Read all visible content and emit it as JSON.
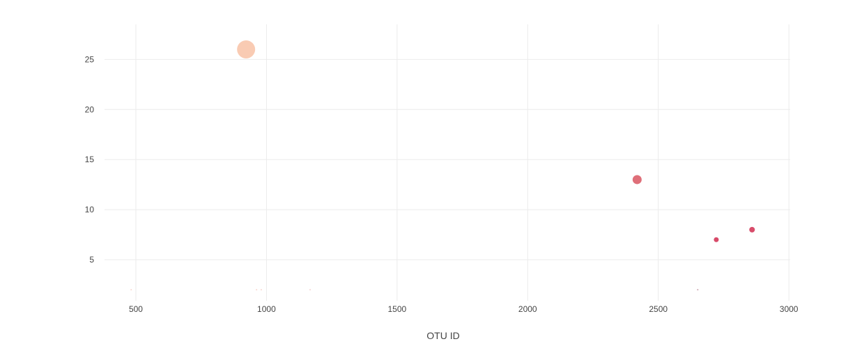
{
  "chart_data": {
    "type": "scatter",
    "title": "",
    "xlabel": "OTU ID",
    "ylabel": "",
    "xlim": [
      380,
      3005
    ],
    "ylim": [
      0.9,
      28.5
    ],
    "x_ticks": [
      500,
      1000,
      1500,
      2000,
      2500,
      3000
    ],
    "y_ticks": [
      5,
      10,
      15,
      20,
      25
    ],
    "grid": true,
    "series": [
      {
        "points": [
          {
            "x": 922,
            "y": 26,
            "size": 26,
            "color": "#f9cbb3"
          },
          {
            "x": 2419,
            "y": 13,
            "size": 13,
            "color": "#df6f79"
          },
          {
            "x": 2859,
            "y": 8,
            "size": 8,
            "color": "#d84d6b"
          },
          {
            "x": 2722,
            "y": 7,
            "size": 7,
            "color": "#d84a69"
          },
          {
            "x": 482,
            "y": 2,
            "size": 2,
            "color": "#f8d6cf"
          },
          {
            "x": 962,
            "y": 2,
            "size": 2,
            "color": "#f8d6cf"
          },
          {
            "x": 980,
            "y": 2,
            "size": 2,
            "color": "#f8d6cf"
          },
          {
            "x": 1167,
            "y": 2,
            "size": 2,
            "color": "#f4d4d2"
          },
          {
            "x": 2651,
            "y": 2,
            "size": 2,
            "color": "#c9a2ad"
          }
        ]
      }
    ]
  }
}
